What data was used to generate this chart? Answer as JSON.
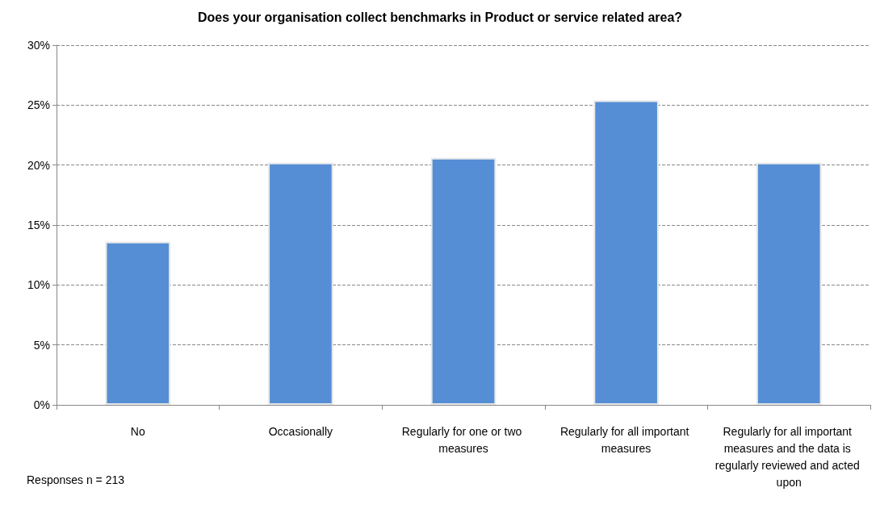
{
  "chart_data": {
    "type": "bar",
    "title": "Does your organisation collect benchmarks in Product or service related area?",
    "categories": [
      "No",
      "Occasionally",
      "Regularly for one or two measures",
      "Regularly for all important measures",
      "Regularly for all important measures and the data is regularly reviewed and acted upon"
    ],
    "values": [
      13.6,
      20.2,
      20.6,
      25.4,
      20.2
    ],
    "color": "#558ed5",
    "ylim": [
      0,
      30
    ],
    "yticks": [
      {
        "value": 0,
        "label": "0%"
      },
      {
        "value": 5,
        "label": "5%"
      },
      {
        "value": 10,
        "label": "10%"
      },
      {
        "value": 15,
        "label": "15%"
      },
      {
        "value": 20,
        "label": "20%"
      },
      {
        "value": 25,
        "label": "25%"
      },
      {
        "value": 30,
        "label": "30%"
      }
    ],
    "grid": "y",
    "annotations": [
      "Responses n = 213"
    ]
  }
}
